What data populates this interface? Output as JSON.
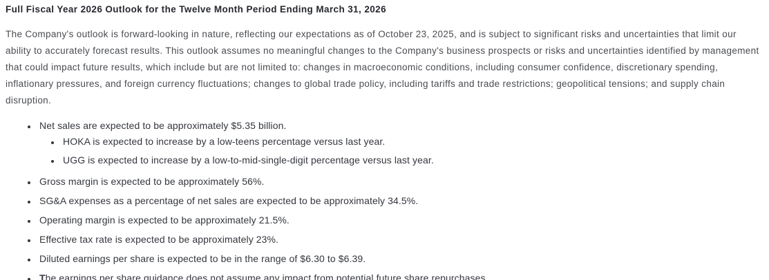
{
  "content": {
    "title": "Full Fiscal Year 2026 Outlook for the Twelve Month Period Ending March 31, 2026",
    "paragraph": "The Company's outlook is forward-looking in nature, reflecting our expectations as of October 23, 2025, and is subject to significant risks and uncertainties that limit our ability to accurately forecast results. This outlook assumes no meaningful changes to the Company's business prospects or risks and uncertainties identified by management that could impact future results, which include but are not limited to: changes in macroeconomic conditions, including consumer confidence, discretionary spending, inflationary pressures, and foreign currency fluctuations; changes to global trade policy, including tariffs and trade restrictions; geopolitical tensions; and supply chain disruption.",
    "bullets": {
      "net_sales": "Net sales are expected to be approximately $5.35 billion.",
      "hoka": "HOKA is expected to increase by a low-teens percentage versus last year.",
      "ugg": "UGG is expected to increase by a low-to-mid-single-digit percentage versus last year.",
      "gross_margin": "Gross margin is expected to be approximately 56%.",
      "sga": "SG&A expenses as a percentage of net sales are expected to be approximately 34.5%.",
      "operating_margin": "Operating margin is expected to be approximately 21.5%.",
      "tax_rate": "Effective tax rate is expected to be approximately 23%.",
      "diluted_eps": "Diluted earnings per share is expected to be in the range of $6.30 to $6.39.",
      "eps_guidance": "The earnings per share guidance does not assume any impact from potential future share repurchases."
    }
  }
}
